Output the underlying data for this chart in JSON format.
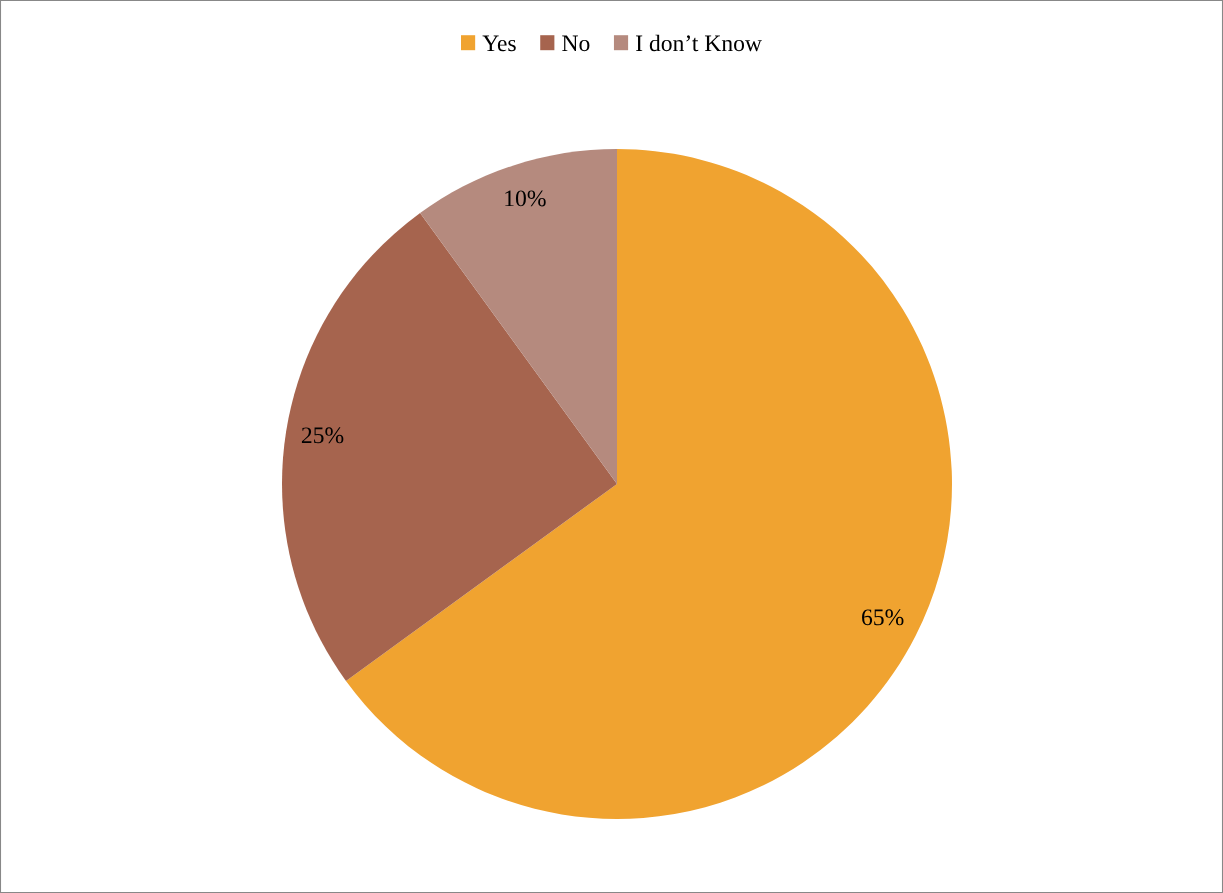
{
  "chart_data": {
    "type": "pie",
    "categories": [
      "Yes",
      "No",
      "I don’t Know"
    ],
    "values": [
      65,
      25,
      10
    ],
    "colors": [
      "#f0a330",
      "#a6644e",
      "#b58a7e"
    ],
    "value_labels": [
      "65%",
      "25%",
      "10%"
    ],
    "legend": "top"
  }
}
